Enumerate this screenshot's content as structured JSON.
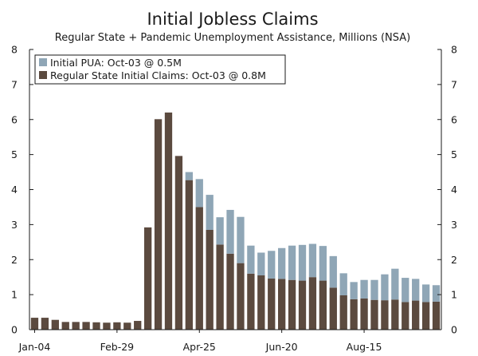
{
  "chart_data": {
    "type": "bar",
    "stacked": true,
    "title": "Initial Jobless Claims",
    "subtitle": "Regular State + Pandemic Unemployment Assistance, Millions (NSA)",
    "xlabel": "",
    "ylabel": "",
    "ylim": [
      0,
      8
    ],
    "yticks": [
      0,
      1,
      2,
      3,
      4,
      5,
      6,
      7,
      8
    ],
    "secondary_y_axis": true,
    "x_tick_labels": [
      {
        "label": "Jan-04",
        "index": 0
      },
      {
        "label": "Feb-29",
        "index": 8
      },
      {
        "label": "Apr-25",
        "index": 16
      },
      {
        "label": "Jun-20",
        "index": 24
      },
      {
        "label": "Aug-15",
        "index": 32
      }
    ],
    "legend_position": "top-left",
    "series": [
      {
        "name": "Regular State Initial Claims: Oct-03 @ 0.8M",
        "color": "#5b4a3f",
        "values": [
          0.34,
          0.34,
          0.28,
          0.22,
          0.22,
          0.22,
          0.21,
          0.2,
          0.21,
          0.2,
          0.25,
          2.92,
          6.01,
          6.2,
          4.96,
          4.27,
          3.5,
          2.85,
          2.43,
          2.17,
          1.9,
          1.6,
          1.55,
          1.46,
          1.45,
          1.42,
          1.4,
          1.5,
          1.4,
          1.2,
          0.98,
          0.87,
          0.89,
          0.85,
          0.84,
          0.86,
          0.79,
          0.83,
          0.79,
          0.8
        ]
      },
      {
        "name": "Initial PUA: Oct-03 @ 0.5M",
        "color": "#8fa6b6",
        "values": [
          0,
          0,
          0,
          0,
          0,
          0,
          0,
          0,
          0,
          0,
          0,
          0,
          0,
          0,
          0,
          0.23,
          0.8,
          1.0,
          0.78,
          1.25,
          1.32,
          0.8,
          0.65,
          0.79,
          0.88,
          0.98,
          1.02,
          0.95,
          0.99,
          0.9,
          0.63,
          0.49,
          0.53,
          0.57,
          0.74,
          0.88,
          0.69,
          0.62,
          0.5,
          0.47
        ]
      }
    ]
  }
}
